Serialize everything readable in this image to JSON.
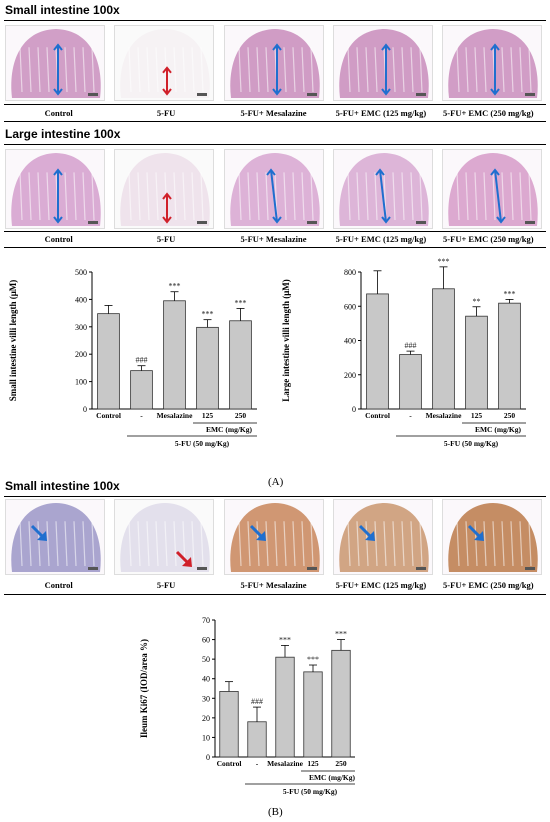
{
  "panel_a": {
    "small_title": "Small intestine 100x",
    "large_title": "Large intestine 100x",
    "group_labels": [
      "Control",
      "5-FU",
      "5-FU+ Mesalazine",
      "5-FU+ EMC (125 mg/kg)",
      "5-FU+ EMC (250 mg/kg)"
    ],
    "label": "(A)"
  },
  "panel_b": {
    "small_title": "Small intestine 100x",
    "group_labels": [
      "Control",
      "5-FU",
      "5-FU+ Mesalazine",
      "5-FU+ EMC (125 mg/kg)",
      "5-FU+ EMC (250 mg/kg)"
    ],
    "label": "(B)"
  },
  "micrographs": [
    {
      "stain": "H&E",
      "tissue": "small",
      "colors": [
        "#c98fbd",
        "#f3eef1",
        "#c88cbb",
        "#c88cbb",
        "#c98dbc"
      ],
      "arrows": [
        "blue",
        "red",
        "blue",
        "blue",
        "blue"
      ]
    },
    {
      "stain": "H&E",
      "tissue": "large",
      "colors": [
        "#d39fcc",
        "#e9d8e6",
        "#d7a6d0",
        "#d7a9d1",
        "#d69bc8"
      ],
      "arrows": [
        "blue",
        "red",
        "blue",
        "blue",
        "blue"
      ]
    },
    {
      "stain": "Ki67 IHC",
      "tissue": "small",
      "colors": [
        "#9b96c7",
        "#d8d4e6",
        "#c8865b",
        "#c9966e",
        "#bb7a49"
      ],
      "arrows": [
        "blue",
        "red",
        "blue",
        "blue",
        "blue"
      ]
    }
  ],
  "group_axis": {
    "group1": "Control",
    "group2": "-",
    "group3": "Mesalazine",
    "group4": "125",
    "group5": "250",
    "emc_label": "EMC (mg/Kg)",
    "fu_label": "5-FU (50 mg/Kg)"
  },
  "chart_data": [
    {
      "type": "bar",
      "ylabel": "Small intestine villi length (μM)",
      "categories": [
        "Control",
        "-",
        "Mesalazine",
        "125",
        "250"
      ],
      "values": [
        348,
        140,
        395,
        298,
        322
      ],
      "errors": [
        30,
        18,
        33,
        28,
        45
      ],
      "annotations": [
        "",
        "###",
        "***",
        "***",
        "***"
      ],
      "ylim": [
        0,
        500
      ],
      "yticks": [
        0,
        100,
        200,
        300,
        400,
        500
      ]
    },
    {
      "type": "bar",
      "ylabel": "Large intestine villi length (μM)",
      "categories": [
        "Control",
        "-",
        "Mesalazine",
        "125",
        "250"
      ],
      "values": [
        672,
        318,
        702,
        542,
        618
      ],
      "errors": [
        135,
        20,
        128,
        55,
        22
      ],
      "annotations": [
        "",
        "###",
        "***",
        "**",
        "***"
      ],
      "ylim": [
        0,
        800
      ],
      "yticks": [
        0,
        200,
        400,
        600,
        800
      ]
    },
    {
      "type": "bar",
      "ylabel": "Ileum Ki67 (IOD/area %)",
      "categories": [
        "Control",
        "-",
        "Mesalazine",
        "125",
        "250"
      ],
      "values": [
        33.5,
        18,
        51,
        43.5,
        54.5
      ],
      "errors": [
        5,
        7.5,
        6,
        3.5,
        5.5
      ],
      "annotations": [
        "",
        "###",
        "***",
        "***",
        "***"
      ],
      "ylim": [
        0,
        70
      ],
      "yticks": [
        0,
        10,
        20,
        30,
        40,
        50,
        60,
        70
      ]
    }
  ]
}
